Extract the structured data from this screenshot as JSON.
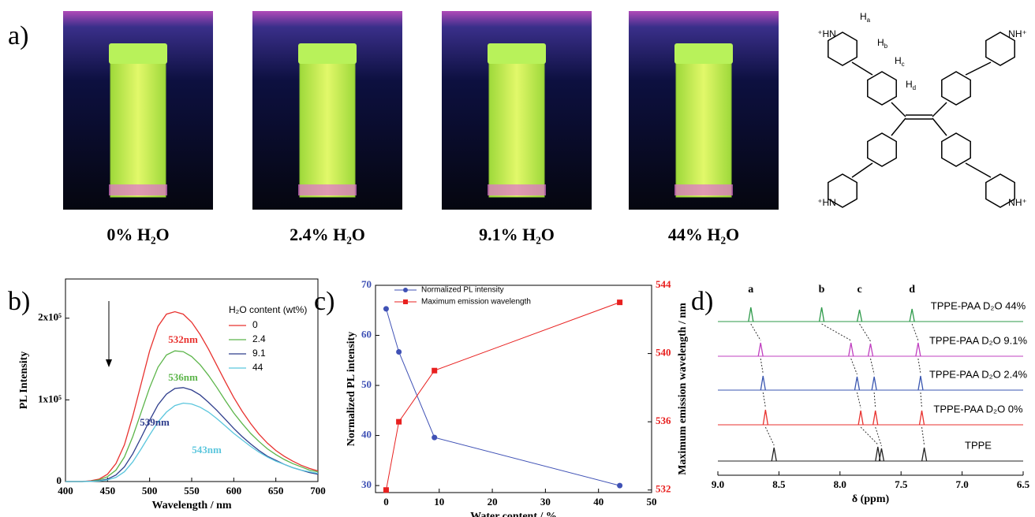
{
  "panel_labels": [
    "a)",
    "b)",
    "c)",
    "d)"
  ],
  "photos": {
    "captions": [
      "0% H₂O",
      "2.4% H₂O",
      "9.1% H₂O",
      "44% H₂O"
    ]
  },
  "structure": {
    "charge_labels": [
      "⁺HN",
      "NH⁺",
      "⁺HN",
      "NH⁺"
    ],
    "h_labels": [
      {
        "main": "H",
        "sub": "a"
      },
      {
        "main": "H",
        "sub": "b"
      },
      {
        "main": "H",
        "sub": "c"
      },
      {
        "main": "H",
        "sub": "d"
      }
    ]
  },
  "chart_data": [
    {
      "type": "line",
      "xlabel": "Wavelength / nm",
      "ylabel": "PL Intensity",
      "xlim": [
        400,
        700
      ],
      "xticks": [
        400,
        450,
        500,
        550,
        600,
        650,
        700
      ],
      "ylim": [
        0,
        248000
      ],
      "yticks": [
        0,
        {
          "value": 100000,
          "label": "1x10⁵"
        },
        {
          "value": 200000,
          "label": "2x10⁵"
        }
      ],
      "legend_title": "H₂O content (wt%)",
      "legend": "upper right",
      "x": [
        400,
        410,
        420,
        430,
        440,
        450,
        460,
        470,
        480,
        490,
        500,
        510,
        520,
        530,
        540,
        550,
        560,
        570,
        580,
        590,
        600,
        610,
        620,
        630,
        640,
        650,
        660,
        670,
        680,
        690,
        700
      ],
      "series": [
        {
          "name": "0",
          "color": "#e8322f",
          "values": [
            0,
            0,
            0,
            1000,
            3000,
            9000,
            22000,
            45000,
            80000,
            120000,
            160000,
            190000,
            205000,
            208000,
            205000,
            195000,
            180000,
            162000,
            142000,
            122000,
            103000,
            86000,
            71000,
            58000,
            47000,
            38000,
            31000,
            25000,
            20000,
            16000,
            13000
          ]
        },
        {
          "name": "2.4",
          "color": "#5cb54a",
          "values": [
            0,
            0,
            0,
            500,
            2000,
            6000,
            14000,
            30000,
            55000,
            85000,
            115000,
            140000,
            155000,
            160000,
            159000,
            153000,
            143000,
            130000,
            115000,
            99000,
            84000,
            71000,
            59000,
            49000,
            40000,
            33000,
            27000,
            22000,
            18000,
            14000,
            12000
          ]
        },
        {
          "name": "9.1",
          "color": "#2e3d8c",
          "values": [
            0,
            0,
            0,
            300,
            1000,
            3000,
            8000,
            18000,
            34000,
            54000,
            75000,
            94000,
            107000,
            114000,
            115000,
            112000,
            106000,
            97000,
            87000,
            76000,
            65000,
            55000,
            46000,
            38000,
            31000,
            26000,
            21000,
            17000,
            14000,
            11000,
            9000
          ]
        },
        {
          "name": "44",
          "color": "#5bc6dd",
          "values": [
            0,
            0,
            0,
            200,
            600,
            2000,
            5000,
            12000,
            24000,
            40000,
            57000,
            73000,
            85000,
            93000,
            96000,
            95000,
            91000,
            85000,
            77000,
            68000,
            59000,
            51000,
            43000,
            36000,
            30000,
            25000,
            21000,
            17000,
            14000,
            12000,
            10000
          ]
        }
      ],
      "annotations": [
        {
          "text": "532nm",
          "color": "#e8322f"
        },
        {
          "text": "536nm",
          "color": "#5cb54a"
        },
        {
          "text": "539nm",
          "color": "#2e3d8c"
        },
        {
          "text": "543nm",
          "color": "#5bc6dd"
        }
      ]
    },
    {
      "type": "line",
      "xlabel": "Water content / %",
      "ylabel": "Normalized PL intensity",
      "y2label": "Maximum emission wavelength / nm",
      "xlim": [
        -2,
        50
      ],
      "xticks": [
        0,
        10,
        20,
        30,
        40,
        50
      ],
      "ylim": [
        28.6,
        70
      ],
      "yticks": [
        30,
        40,
        50,
        60,
        70
      ],
      "y2lim": [
        531.85,
        544
      ],
      "y2ticks": [
        532,
        536,
        540,
        544
      ],
      "legend": "upper center",
      "series": [
        {
          "name": "Normalized PL intensity",
          "color": "#3f51b5",
          "marker": "circle",
          "x": [
            0,
            2.4,
            9.1,
            44
          ],
          "values": [
            65.3,
            56.7,
            39.6,
            30
          ]
        },
        {
          "name": "Maximum emission wavelength",
          "color": "#e8201f",
          "marker": "square",
          "axis": "y2",
          "x": [
            0,
            2.4,
            9.1,
            44
          ],
          "values": [
            532,
            536,
            539,
            543
          ]
        }
      ]
    },
    {
      "type": "spectrum",
      "xlabel": "δ (ppm)",
      "xlim": [
        9,
        6.5
      ],
      "xticks": [
        {
          "value": 9,
          "label": "9.0"
        },
        8.5,
        {
          "value": 8,
          "label": "8.0"
        },
        7.5,
        {
          "value": 7,
          "label": "7.0"
        },
        6.5
      ],
      "peak_labels": [
        "a",
        "b",
        "c",
        "d"
      ],
      "series": [
        {
          "name": "TPPE-PAA D₂O 44%",
          "color": "#2e9a4a",
          "x": [
            8.73,
            8.15,
            7.84,
            7.41
          ],
          "values": [
            18,
            18,
            15,
            16
          ]
        },
        {
          "name": "TPPE-PAA D₂O 9.1%",
          "color": "#c040c0",
          "x": [
            8.65,
            7.91,
            7.75,
            7.36
          ],
          "values": [
            17,
            17,
            16,
            17
          ]
        },
        {
          "name": "TPPE-PAA D₂O 2.4%",
          "color": "#3a56b0",
          "x": [
            8.63,
            7.86,
            7.72,
            7.34
          ],
          "values": [
            18,
            17,
            17,
            18
          ]
        },
        {
          "name": "TPPE-PAA D₂O 0%",
          "color": "#e8322f",
          "x": [
            8.61,
            7.83,
            7.71,
            7.33
          ],
          "values": [
            19,
            18,
            18,
            18
          ]
        },
        {
          "name": "TPPE",
          "color": "#222222",
          "x": [
            8.54,
            7.69,
            7.66,
            7.31
          ],
          "values": [
            17,
            18,
            16,
            17
          ]
        }
      ]
    }
  ]
}
